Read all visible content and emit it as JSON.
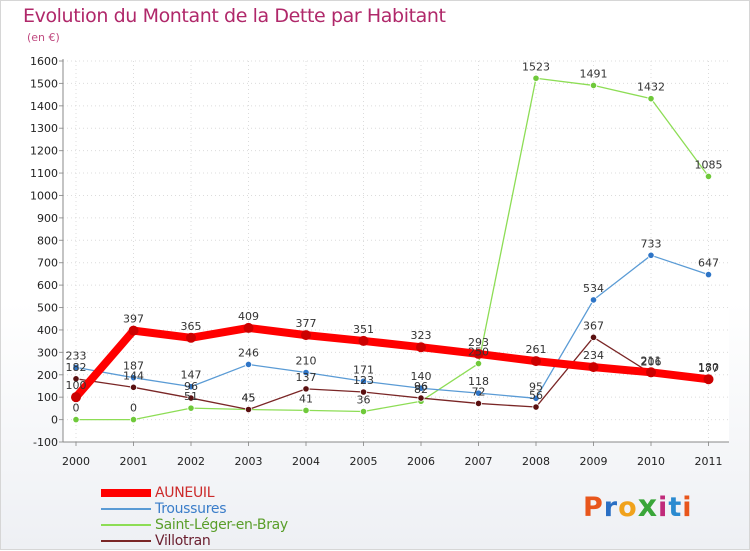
{
  "header": {
    "title": "Evolution du Montant de la Dette par Habitant",
    "unit": "(en €)"
  },
  "brand": {
    "letters": [
      "P",
      "r",
      "o",
      "x",
      "i",
      "t",
      "i"
    ],
    "colors": [
      "#e8561c",
      "#2a6fc4",
      "#f0a21c",
      "#3aa63a",
      "#c02a7a",
      "#2a8ad0",
      "#e8561c"
    ]
  },
  "chart_data": {
    "type": "line",
    "title": "Evolution du Montant de la Dette par Habitant",
    "ylabel": "(en €)",
    "xlabel": "",
    "x": [
      "2000",
      "2001",
      "2002",
      "2003",
      "2004",
      "2005",
      "2006",
      "2007",
      "2008",
      "2009",
      "2010",
      "2011"
    ],
    "ylim": [
      -100,
      1600
    ],
    "yticks": [
      -100,
      0,
      100,
      200,
      300,
      400,
      500,
      600,
      700,
      800,
      900,
      1000,
      1100,
      1200,
      1300,
      1400,
      1500,
      1600
    ],
    "grid": true,
    "legend_position": "bottom-left",
    "series": [
      {
        "name": "AUNEUIL",
        "color": "#ff0000",
        "values": [
          100,
          397,
          365,
          409,
          377,
          351,
          323,
          293,
          261,
          234,
          211,
          180
        ],
        "labels": [
          "100",
          "397",
          "365",
          "409",
          "377",
          "351",
          "323",
          "293",
          "261",
          "234",
          "211",
          "180"
        ]
      },
      {
        "name": "Troussures",
        "color": "#5a9bd5",
        "values": [
          233,
          187,
          147,
          246,
          210,
          171,
          140,
          118,
          95,
          534,
          733,
          647
        ],
        "labels": [
          "233",
          "187",
          "147",
          "246",
          "210",
          "171",
          "140",
          "118",
          "95",
          "534",
          "733",
          "647"
        ]
      },
      {
        "name": "Saint-Léger-en-Bray",
        "color": "#8ddd55",
        "values": [
          0,
          0,
          51,
          45,
          41,
          36,
          82,
          250,
          1523,
          1491,
          1432,
          1085
        ],
        "labels": [
          "0",
          "0",
          "51",
          "45",
          "41",
          "36",
          "82",
          "250",
          "1523",
          "1491",
          "1432",
          "1085"
        ]
      },
      {
        "name": "Villotran",
        "color": "#7a2626",
        "values": [
          182,
          144,
          96,
          45,
          137,
          123,
          96,
          72,
          56,
          367,
          206,
          177
        ],
        "labels": [
          "182",
          "144",
          "96",
          "45",
          "137",
          "123",
          "96",
          "72",
          "56",
          "367",
          "206",
          "177"
        ]
      }
    ]
  }
}
